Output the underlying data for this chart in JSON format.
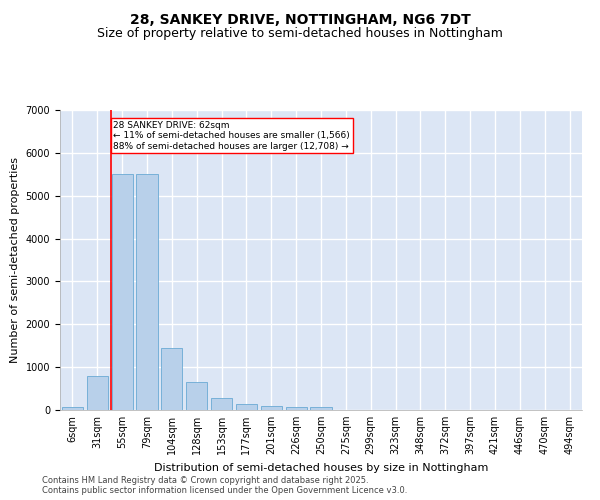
{
  "title": "28, SANKEY DRIVE, NOTTINGHAM, NG6 7DT",
  "subtitle": "Size of property relative to semi-detached houses in Nottingham",
  "xlabel": "Distribution of semi-detached houses by size in Nottingham",
  "ylabel": "Number of semi-detached properties",
  "bins": [
    "6sqm",
    "31sqm",
    "55sqm",
    "79sqm",
    "104sqm",
    "128sqm",
    "153sqm",
    "177sqm",
    "201sqm",
    "226sqm",
    "250sqm",
    "275sqm",
    "299sqm",
    "323sqm",
    "348sqm",
    "372sqm",
    "397sqm",
    "421sqm",
    "446sqm",
    "470sqm",
    "494sqm"
  ],
  "values": [
    60,
    800,
    5500,
    5500,
    1450,
    650,
    270,
    145,
    95,
    65,
    65,
    0,
    0,
    0,
    0,
    0,
    0,
    0,
    0,
    0,
    0
  ],
  "bar_color": "#b8d0ea",
  "bar_edge_color": "#6aaad4",
  "vline_color": "red",
  "vline_pos": 1.57,
  "annotation_title": "28 SANKEY DRIVE: 62sqm",
  "annotation_line1": "← 11% of semi-detached houses are smaller (1,566)",
  "annotation_line2": "88% of semi-detached houses are larger (12,708) →",
  "annotation_box_color": "white",
  "annotation_box_edge": "red",
  "background_color": "#dce6f5",
  "grid_color": "white",
  "footer1": "Contains HM Land Registry data © Crown copyright and database right 2025.",
  "footer2": "Contains public sector information licensed under the Open Government Licence v3.0.",
  "ylim": [
    0,
    7000
  ],
  "yticks": [
    0,
    1000,
    2000,
    3000,
    4000,
    5000,
    6000,
    7000
  ],
  "title_fontsize": 10,
  "subtitle_fontsize": 9,
  "ylabel_fontsize": 8,
  "xlabel_fontsize": 8,
  "tick_fontsize": 7,
  "footer_fontsize": 6
}
